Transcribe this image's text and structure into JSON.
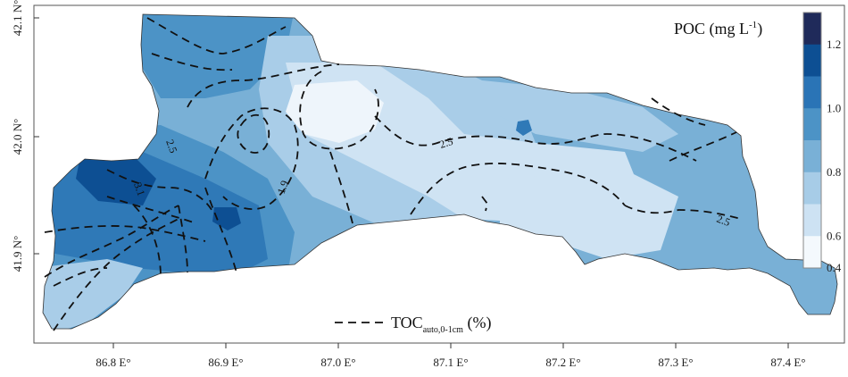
{
  "map": {
    "x_ticks": [
      "86.8 E°",
      "86.9 E°",
      "87.0 E°",
      "87.1 E°",
      "87.2 E°",
      "87.3 E°",
      "87.4 E°"
    ],
    "y_ticks": [
      "42.1 N°",
      "42.0 N°",
      "41.9 N°"
    ],
    "contour_labels": [
      "2.5",
      "3.1",
      "1.9",
      "2.5",
      "2.5"
    ],
    "legend": {
      "title_main": "POC (mg L",
      "title_sup": "-1",
      "title_close": ")",
      "line_label_main": "TOC",
      "line_label_sub": "auto,0-1cm",
      "line_label_unit": " (%)"
    },
    "colorbar": {
      "ticks": [
        "1.2",
        "1.0",
        "0.8",
        "0.6",
        "0.4"
      ],
      "colors": [
        "#1f2a5a",
        "#0d4f93",
        "#2a74b6",
        "#4c93c6",
        "#79b0d6",
        "#a7cce7",
        "#cde2f3",
        "#f4f9fd"
      ]
    },
    "colors": {
      "dark_blue": "#0d4f93",
      "mid_blue": "#2f79b7",
      "blue": "#4c93c6",
      "light_blue": "#79b0d6",
      "pale_blue": "#a9cde8",
      "very_pale": "#cfe3f3",
      "white_blue": "#eef5fb"
    }
  }
}
